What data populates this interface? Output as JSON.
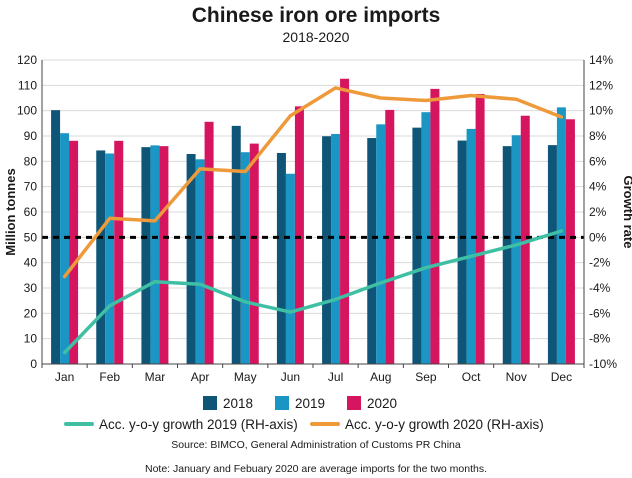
{
  "chart_data": {
    "type": "bar",
    "title": "Chinese iron ore imports",
    "subtitle": "2018-2020",
    "ylabel": "Million tonnes",
    "y2label": "Growth rate",
    "ylim": [
      0,
      120
    ],
    "y2lim": [
      -10,
      14
    ],
    "yticks": [
      "0",
      "10",
      "20",
      "30",
      "40",
      "50",
      "60",
      "70",
      "80",
      "90",
      "100",
      "110",
      "120"
    ],
    "y2ticks": [
      "-10%",
      "-8%",
      "-6%",
      "-4%",
      "-2%",
      "0%",
      "2%",
      "4%",
      "6%",
      "8%",
      "10%",
      "12%",
      "14%"
    ],
    "categories": [
      "Jan",
      "Feb",
      "Mar",
      "Apr",
      "May",
      "Jun",
      "Jul",
      "Aug",
      "Sep",
      "Oct",
      "Nov",
      "Dec"
    ],
    "series": [
      {
        "name": "2018",
        "kind": "bar",
        "color": "#0e5577",
        "values": [
          100.2,
          84.3,
          85.6,
          82.9,
          94.0,
          83.3,
          89.9,
          89.2,
          93.3,
          88.2,
          86.0,
          86.4
        ]
      },
      {
        "name": "2019",
        "kind": "bar",
        "color": "#1a95c4",
        "values": [
          91.1,
          83.1,
          86.3,
          80.8,
          83.6,
          75.1,
          90.8,
          94.6,
          99.4,
          92.8,
          90.3,
          101.3
        ]
      },
      {
        "name": "2020",
        "kind": "bar",
        "color": "#d6155f",
        "values": [
          88.1,
          88.1,
          86.0,
          95.6,
          87.0,
          101.7,
          112.6,
          100.3,
          108.6,
          106.6,
          98.0,
          96.6
        ]
      },
      {
        "name": "Acc. y-o-y growth 2019 (RH-axis)",
        "kind": "line",
        "axis": "right",
        "color": "#3fbfa4",
        "values": [
          -9.1,
          -5.4,
          -3.5,
          -3.7,
          -5.1,
          -5.9,
          -4.9,
          -3.6,
          -2.4,
          -1.5,
          -0.6,
          0.5
        ]
      },
      {
        "name": "Acc. y-o-y growth 2020 (RH-axis)",
        "kind": "line",
        "axis": "right",
        "color": "#ee9a3a",
        "values": [
          -3.1,
          1.5,
          1.3,
          5.4,
          5.2,
          9.6,
          11.8,
          11.0,
          10.8,
          11.2,
          10.9,
          9.5
        ]
      }
    ],
    "reference_line": {
      "value": 50,
      "axis": "left",
      "style": "dashed"
    },
    "legend_position": "bottom",
    "source": "Source: BIMCO, General Administration of Customs PR China",
    "note": "Note: January and Febuary 2020 are average imports for the two months."
  }
}
